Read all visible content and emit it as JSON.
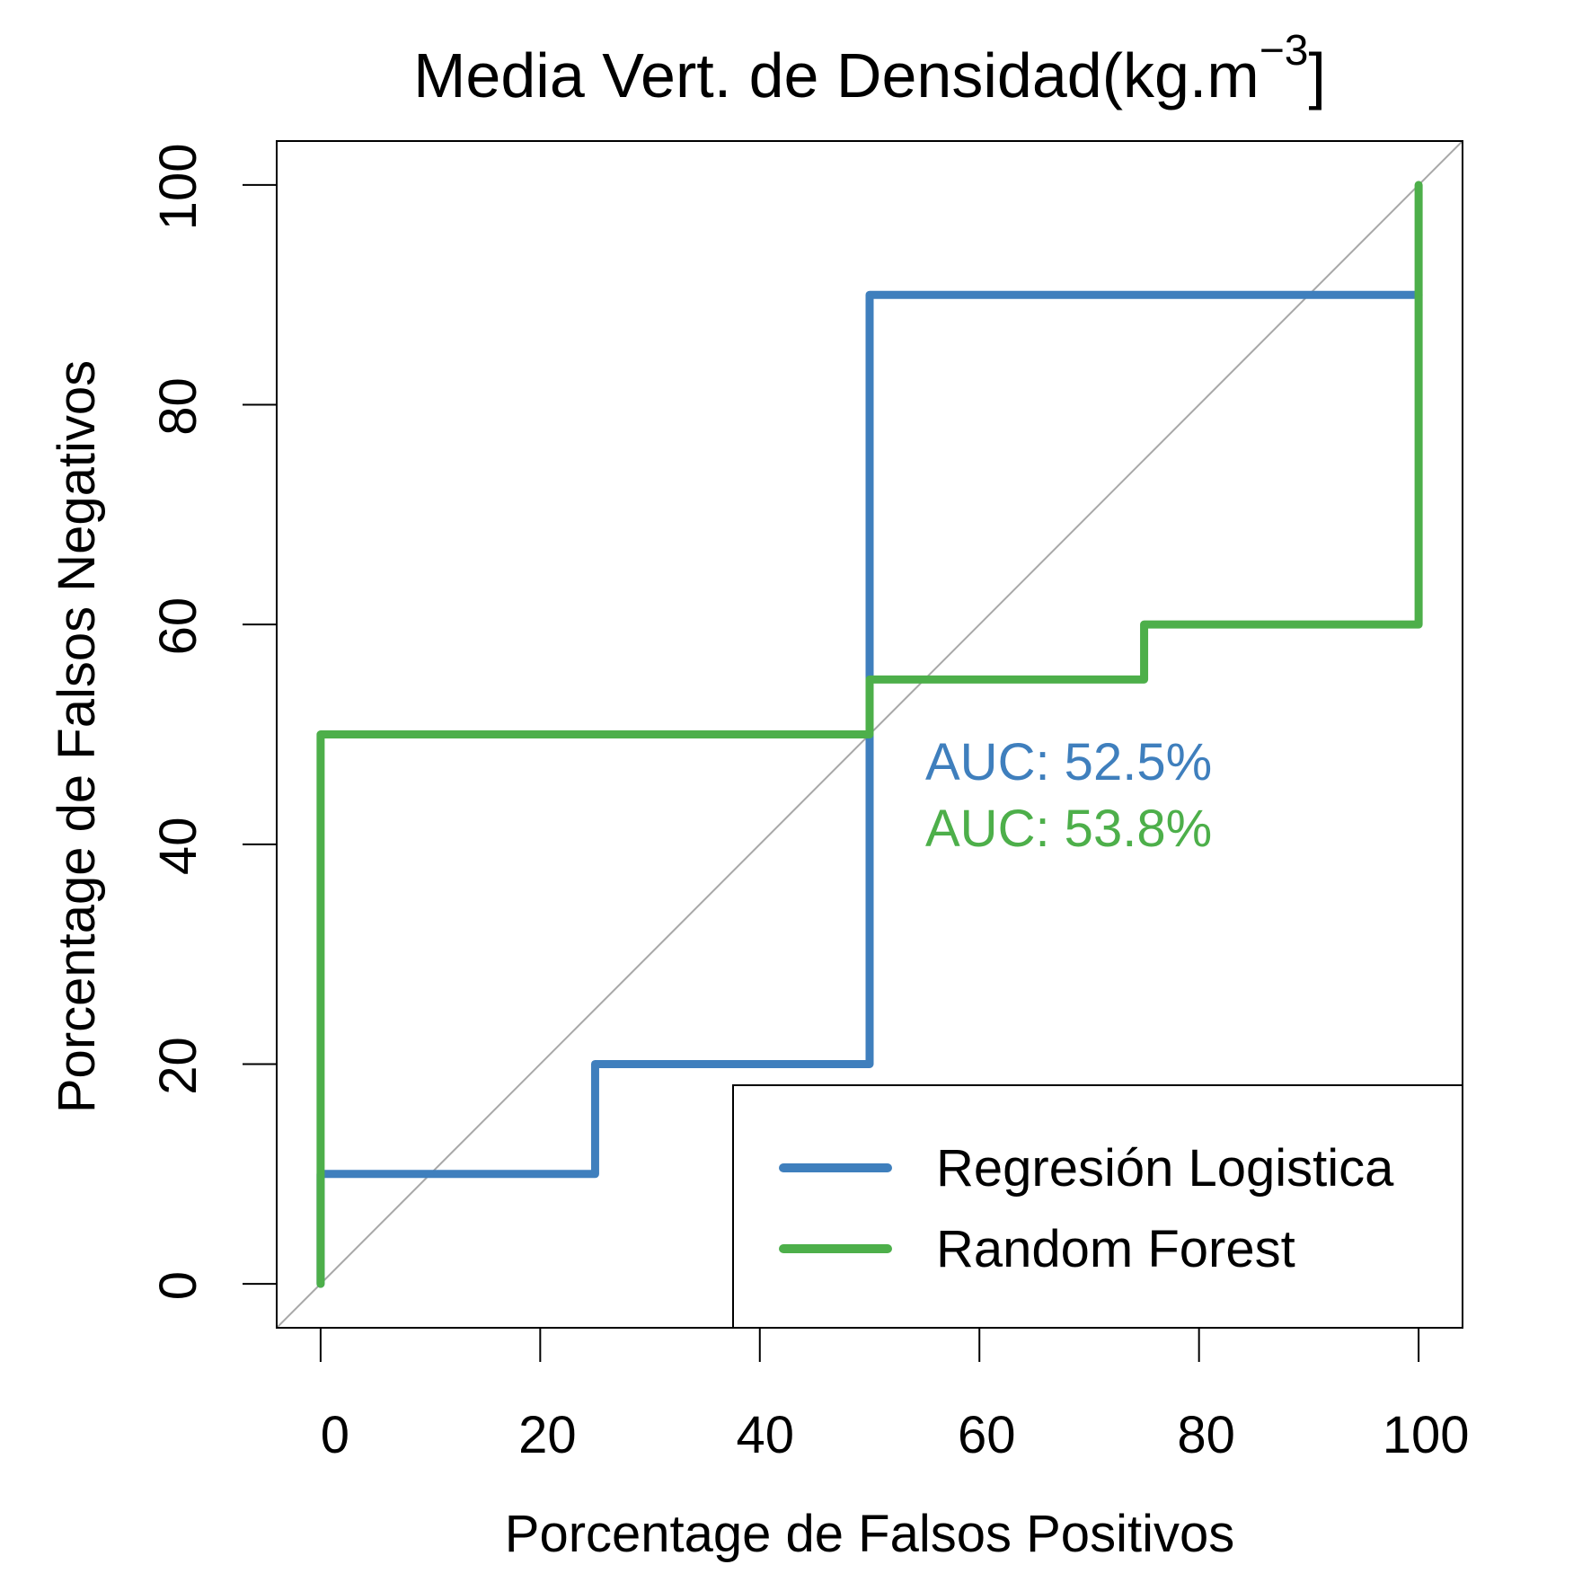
{
  "chart_data": {
    "type": "line",
    "title": "Media Vert. de Densidad(kg.m",
    "title_superscript": "−3",
    "title_suffix": "]",
    "xlabel": "Porcentage de Falsos Positivos",
    "ylabel": "Porcentage de Falsos Negativos",
    "xlim": [
      -4,
      104
    ],
    "ylim": [
      -4,
      104
    ],
    "xticks": [
      0,
      20,
      40,
      60,
      80,
      100
    ],
    "yticks": [
      0,
      20,
      40,
      60,
      80,
      100
    ],
    "grid": false,
    "legend_position": "bottom-right",
    "reference_line": {
      "x": [
        -4,
        104
      ],
      "y": [
        -4,
        104
      ],
      "color": "#a8a8a8"
    },
    "series": [
      {
        "name": "Regresión Logistica",
        "color": "#3f7fbd",
        "x": [
          0,
          0,
          25,
          25,
          50,
          50,
          100
        ],
        "y": [
          0,
          10,
          10,
          20,
          20,
          90,
          90
        ]
      },
      {
        "name": "Random Forest",
        "color": "#4daf4a",
        "x": [
          0,
          0,
          50,
          50,
          75,
          75,
          100,
          100
        ],
        "y": [
          0,
          50,
          50,
          55,
          55,
          60,
          60,
          100
        ]
      }
    ],
    "annotations": [
      {
        "text": "AUC: 52.5%",
        "color": "#3f7fbd"
      },
      {
        "text": "AUC: 53.8%",
        "color": "#4daf4a"
      }
    ]
  }
}
